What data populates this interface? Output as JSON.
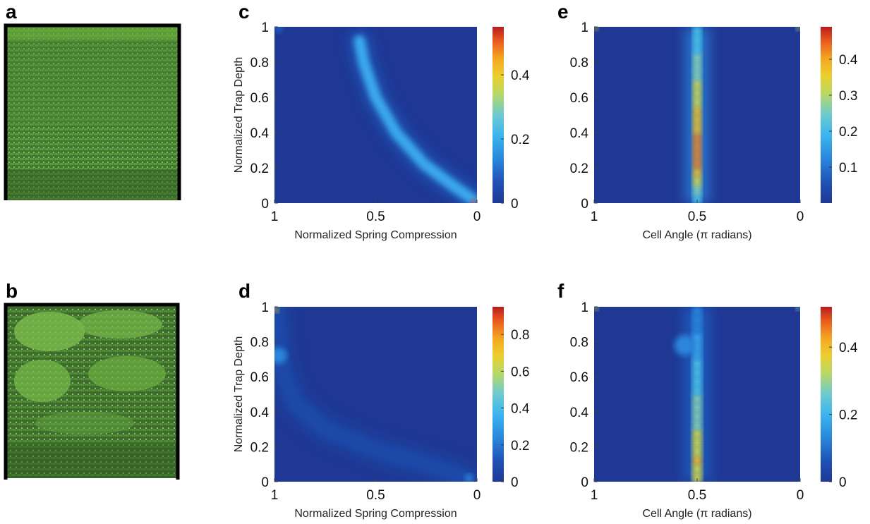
{
  "panel_letters": {
    "a": "a",
    "b": "b",
    "c": "c",
    "d": "d",
    "e": "e",
    "f": "f"
  },
  "colormap": [
    "#1f3894",
    "#1f4aa8",
    "#1f62c4",
    "#2a86dc",
    "#3aa8ec",
    "#4cc6e8",
    "#8ad4b4",
    "#d6dc48",
    "#f4c020",
    "#f2861e",
    "#e04020",
    "#b81c1c"
  ],
  "chart_data": [
    {
      "panel": "c",
      "type": "heatmap",
      "xlabel": "Normalized Spring Compression",
      "ylabel": "Normalized Trap Depth",
      "xticks": [
        "1",
        "0.5",
        "0"
      ],
      "yticks": [
        "0",
        "0.2",
        "0.4",
        "0.6",
        "0.8",
        "1"
      ],
      "xlim": [
        1,
        0
      ],
      "ylim": [
        0,
        1
      ],
      "colorbar_ticks": [
        "0",
        "0.2",
        "0.4"
      ],
      "colorbar_max": 0.55,
      "features": [
        {
          "shape": "curve",
          "points": [
            [
              0.58,
              0.92
            ],
            [
              0.56,
              0.8
            ],
            [
              0.5,
              0.6
            ],
            [
              0.4,
              0.4
            ],
            [
              0.26,
              0.22
            ],
            [
              0.12,
              0.1
            ],
            [
              0.02,
              0.02
            ]
          ],
          "value": 0.18,
          "width": 0.055
        },
        {
          "shape": "spot",
          "x": 0.02,
          "y": 0.01,
          "value": 0.5,
          "radius": 0.012
        },
        {
          "shape": "spot",
          "x": 0.98,
          "y": 0.99,
          "value": 0.12,
          "radius": 0.02
        }
      ]
    },
    {
      "panel": "d",
      "type": "heatmap",
      "xlabel": "Normalized Spring Compression",
      "ylabel": "Normalized Trap Depth",
      "xticks": [
        "1",
        "0.5",
        "0"
      ],
      "yticks": [
        "0",
        "0.2",
        "0.4",
        "0.6",
        "0.8",
        "1"
      ],
      "xlim": [
        1,
        0
      ],
      "ylim": [
        0,
        1
      ],
      "colorbar_ticks": [
        "0",
        "0.2",
        "0.4",
        "0.6",
        "0.8"
      ],
      "colorbar_max": 0.95,
      "features": [
        {
          "shape": "curve",
          "points": [
            [
              0.99,
              0.98
            ],
            [
              0.98,
              0.78
            ],
            [
              0.96,
              0.62
            ],
            [
              0.9,
              0.45
            ],
            [
              0.75,
              0.3
            ],
            [
              0.5,
              0.18
            ],
            [
              0.25,
              0.1
            ],
            [
              0.05,
              0.02
            ]
          ],
          "value": 0.12,
          "width": 0.07
        },
        {
          "shape": "spot",
          "x": 0.98,
          "y": 0.72,
          "value": 0.25,
          "radius": 0.04
        },
        {
          "shape": "spot",
          "x": 0.99,
          "y": 0.98,
          "value": 0.7,
          "radius": 0.012
        },
        {
          "shape": "spot",
          "x": 0.04,
          "y": 0.02,
          "value": 0.22,
          "radius": 0.02
        }
      ]
    },
    {
      "panel": "e",
      "type": "heatmap",
      "xlabel": "Cell Angle (π radians)",
      "ylabel": "",
      "xticks": [
        "1",
        "0.5",
        "0"
      ],
      "yticks": [
        "0",
        "0.2",
        "0.4",
        "0.6",
        "0.8",
        "1"
      ],
      "xlim": [
        1,
        0
      ],
      "ylim": [
        0,
        1
      ],
      "colorbar_ticks": [
        "0.1",
        "0.2",
        "0.3",
        "0.4"
      ],
      "colorbar_max": 0.49,
      "features": [
        {
          "shape": "vband",
          "x": 0.5,
          "value_bottom": 0.22,
          "value_peak": 0.42,
          "peak_y": 0.25,
          "value_top": 0.2,
          "width": 0.04
        },
        {
          "shape": "spot",
          "x": 0.99,
          "y": 0.99,
          "value": 0.35,
          "radius": 0.01
        },
        {
          "shape": "spot",
          "x": 0.01,
          "y": 0.99,
          "value": 0.3,
          "radius": 0.01
        }
      ]
    },
    {
      "panel": "f",
      "type": "heatmap",
      "xlabel": "Cell Angle (π radians)",
      "ylabel": "",
      "xticks": [
        "1",
        "0.5",
        "0"
      ],
      "yticks": [
        "0",
        "0.2",
        "0.4",
        "0.6",
        "0.8",
        "1"
      ],
      "xlim": [
        1,
        0
      ],
      "ylim": [
        0,
        1
      ],
      "colorbar_ticks": [
        "0",
        "0.2",
        "0.4"
      ],
      "colorbar_max": 0.52,
      "features": [
        {
          "shape": "vband",
          "x": 0.5,
          "value_bottom": 0.34,
          "value_peak": 0.36,
          "peak_y": 0.1,
          "value_top": 0.12,
          "width": 0.045
        },
        {
          "shape": "spot",
          "x": 0.56,
          "y": 0.78,
          "value": 0.12,
          "radius": 0.05
        },
        {
          "shape": "spot",
          "x": 0.99,
          "y": 0.99,
          "value": 0.35,
          "radius": 0.01
        },
        {
          "shape": "spot",
          "x": 0.01,
          "y": 0.99,
          "value": 0.3,
          "radius": 0.01
        }
      ]
    }
  ]
}
